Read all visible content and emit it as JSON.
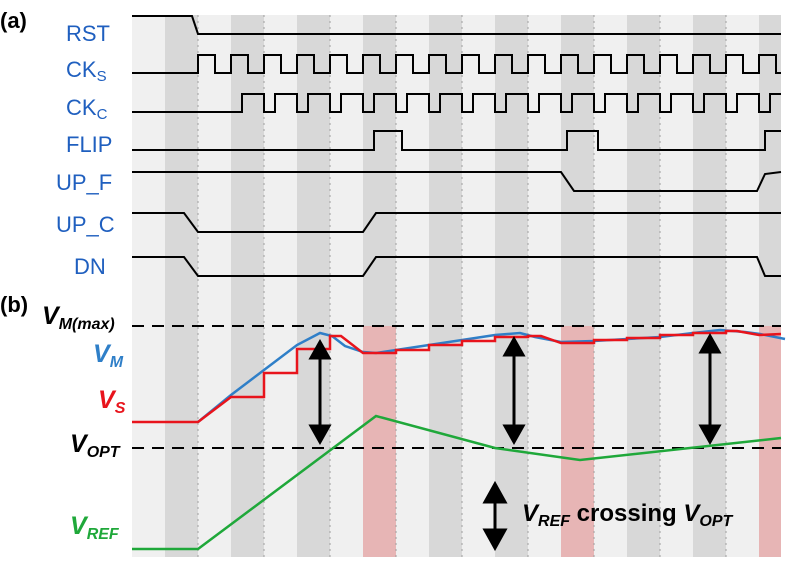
{
  "panels": {
    "a": "(a)",
    "b": "(b)"
  },
  "signals": [
    {
      "id": "rst",
      "main": "RST",
      "sub": ""
    },
    {
      "id": "cks",
      "main": "CK",
      "sub": "S"
    },
    {
      "id": "ckc",
      "main": "CK",
      "sub": "C"
    },
    {
      "id": "flip",
      "main": "FLIP",
      "sub": ""
    },
    {
      "id": "upf",
      "main": "UP_F",
      "sub": ""
    },
    {
      "id": "upc",
      "main": "UP_C",
      "sub": ""
    },
    {
      "id": "dn",
      "main": "DN",
      "sub": ""
    }
  ],
  "analog_labels": {
    "vmmax": {
      "main": "V",
      "sub": "M(max)"
    },
    "vm": {
      "main": "V",
      "sub": "M"
    },
    "vs": {
      "main": "V",
      "sub": "S"
    },
    "vopt": {
      "main": "V",
      "sub": "OPT"
    },
    "vref": {
      "main": "V",
      "sub": "REF"
    }
  },
  "annotation": {
    "v1": "V",
    "s1": "REF",
    "mid": " crossing ",
    "v2": "V",
    "s2": "OPT"
  },
  "colors": {
    "digital_label": "#1f5fbf",
    "vm": "#2f7fc8",
    "vs": "#e8141c",
    "vref": "#1fa83a",
    "band_light": "#f0f0f0",
    "band_dark": "#d8d8d8",
    "highlight": "#e7b5b5"
  }
}
